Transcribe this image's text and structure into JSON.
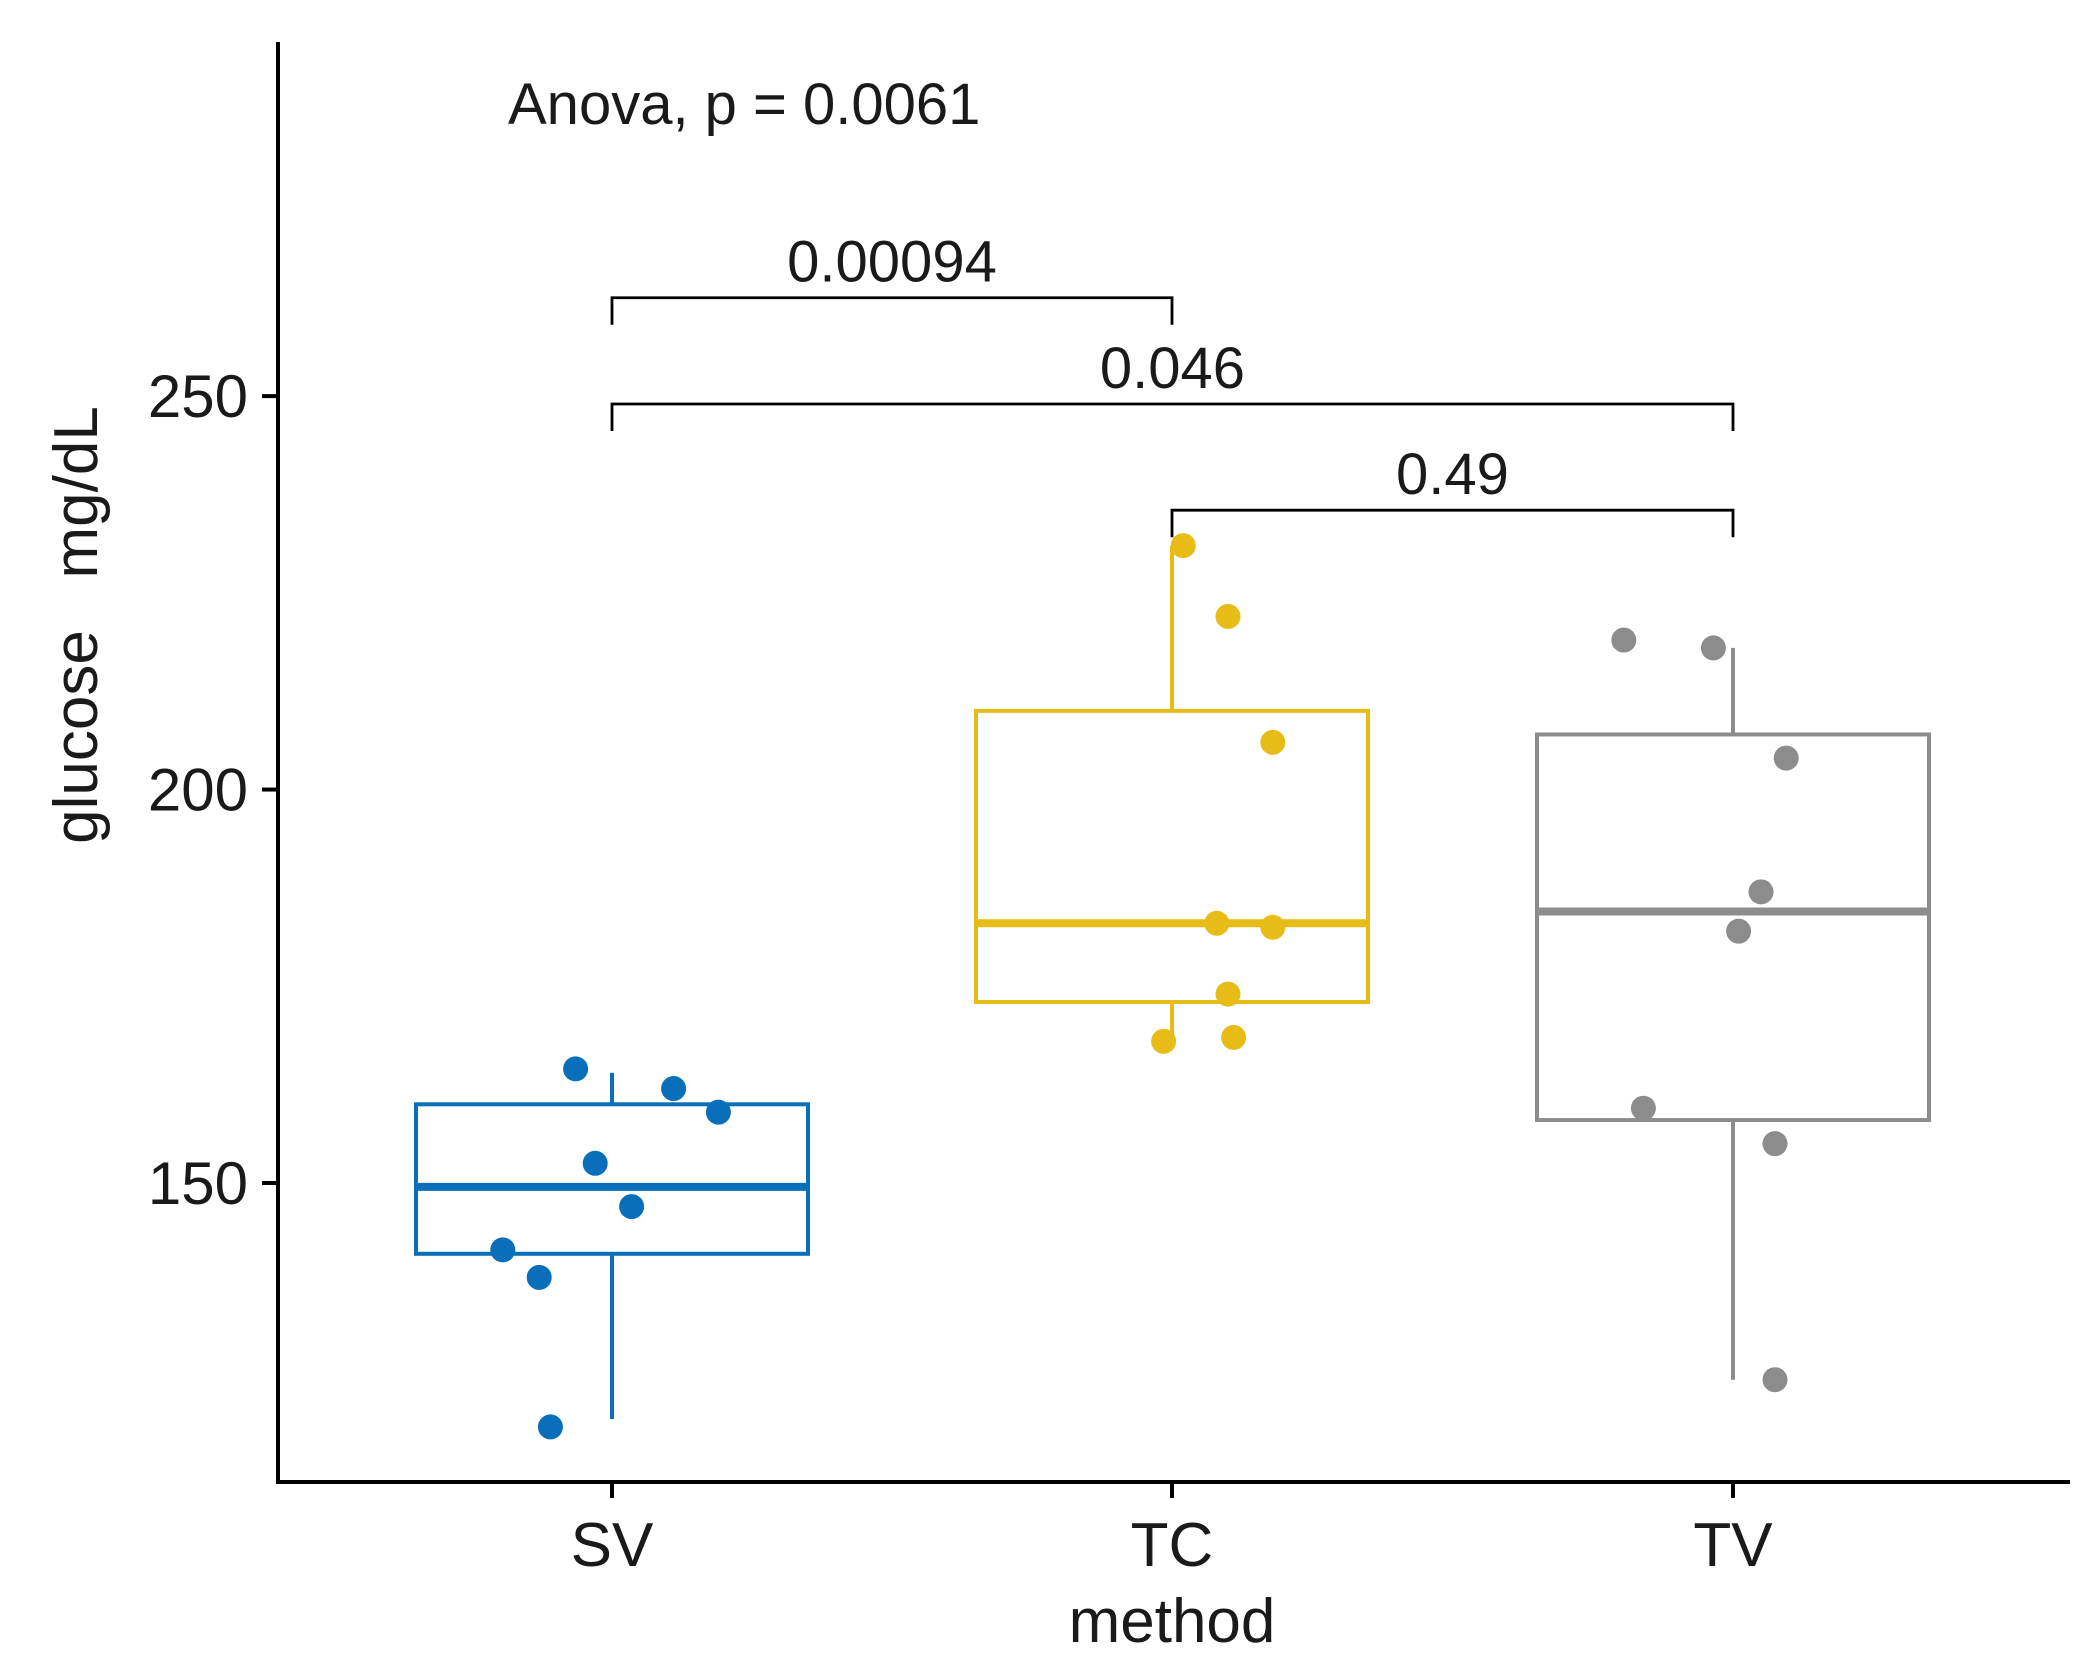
{
  "chart_data": {
    "type": "box",
    "title": "",
    "xlabel": "method",
    "ylabel": "glucose   mg/dL",
    "ylim": [
      112,
      295
    ],
    "y_ticks": [
      150,
      200,
      250
    ],
    "categories": [
      "SV",
      "TC",
      "TV"
    ],
    "colors": {
      "SV": "#0a6fba",
      "TC": "#e8bc16",
      "TV": "#8c8c8c"
    },
    "boxes": [
      {
        "category": "SV",
        "min": 120,
        "q1": 141,
        "median": 149.5,
        "q3": 160,
        "max": 164
      },
      {
        "category": "TC",
        "min": 168,
        "q1": 173,
        "median": 183,
        "q3": 210,
        "max": 231
      },
      {
        "category": "TV",
        "min": 125,
        "q1": 158,
        "median": 184.5,
        "q3": 207,
        "max": 218
      }
    ],
    "points": [
      {
        "category": "SV",
        "jitter": -0.065,
        "y": 164.5
      },
      {
        "category": "SV",
        "jitter": 0.11,
        "y": 162
      },
      {
        "category": "SV",
        "jitter": 0.19,
        "y": 159
      },
      {
        "category": "SV",
        "jitter": -0.03,
        "y": 152.5
      },
      {
        "category": "SV",
        "jitter": 0.035,
        "y": 147
      },
      {
        "category": "SV",
        "jitter": -0.195,
        "y": 141.5
      },
      {
        "category": "SV",
        "jitter": -0.13,
        "y": 138
      },
      {
        "category": "SV",
        "jitter": -0.11,
        "y": 119
      },
      {
        "category": "TC",
        "jitter": 0.02,
        "y": 231
      },
      {
        "category": "TC",
        "jitter": 0.1,
        "y": 222
      },
      {
        "category": "TC",
        "jitter": 0.18,
        "y": 206
      },
      {
        "category": "TC",
        "jitter": 0.08,
        "y": 183
      },
      {
        "category": "TC",
        "jitter": 0.18,
        "y": 182.5
      },
      {
        "category": "TC",
        "jitter": 0.1,
        "y": 174
      },
      {
        "category": "TC",
        "jitter": -0.015,
        "y": 168
      },
      {
        "category": "TC",
        "jitter": 0.11,
        "y": 168.5
      },
      {
        "category": "TV",
        "jitter": -0.195,
        "y": 219
      },
      {
        "category": "TV",
        "jitter": -0.035,
        "y": 218
      },
      {
        "category": "TV",
        "jitter": 0.095,
        "y": 204
      },
      {
        "category": "TV",
        "jitter": 0.05,
        "y": 187
      },
      {
        "category": "TV",
        "jitter": 0.01,
        "y": 182
      },
      {
        "category": "TV",
        "jitter": -0.16,
        "y": 159.5
      },
      {
        "category": "TV",
        "jitter": 0.075,
        "y": 155
      },
      {
        "category": "TV",
        "jitter": 0.075,
        "y": 125
      }
    ],
    "annotations": [
      {
        "text": "Anova, p = 0.0061"
      }
    ],
    "comparisons": [
      {
        "group1": "SV",
        "group2": "TC",
        "label": "0.00094",
        "y": 262.5
      },
      {
        "group1": "SV",
        "group2": "TV",
        "label": "0.046",
        "y": 249
      },
      {
        "group1": "TC",
        "group2": "TV",
        "label": "0.49",
        "y": 235.5
      }
    ]
  }
}
